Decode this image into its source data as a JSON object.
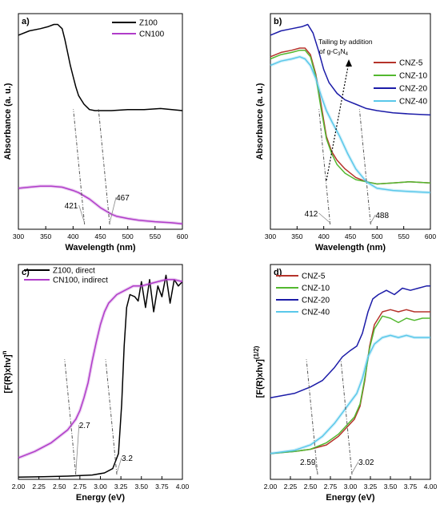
{
  "chart_data": [
    {
      "panel": "a)",
      "type": "line",
      "xlabel": "Wavelength (nm)",
      "ylabel": "Absorbance (a. u.)",
      "xlim": [
        300,
        600
      ],
      "xticks": [
        "300",
        "350",
        "400",
        "450",
        "500",
        "550",
        "600"
      ],
      "ylim": [
        0,
        1
      ],
      "legend": "top-right",
      "series": [
        {
          "name": "Z100",
          "color": "#000000",
          "x": [
            300,
            320,
            340,
            355,
            365,
            372,
            380,
            385,
            390,
            395,
            400,
            405,
            410,
            415,
            420,
            430,
            440,
            450,
            470,
            500,
            530,
            560,
            600
          ],
          "y": [
            0.9,
            0.92,
            0.93,
            0.94,
            0.95,
            0.95,
            0.93,
            0.88,
            0.82,
            0.76,
            0.71,
            0.66,
            0.62,
            0.6,
            0.58,
            0.555,
            0.55,
            0.55,
            0.55,
            0.555,
            0.555,
            0.56,
            0.55
          ]
        },
        {
          "name": "CN100",
          "color": "#b03cc9",
          "x": [
            300,
            320,
            340,
            360,
            380,
            400,
            410,
            420,
            430,
            440,
            450,
            460,
            470,
            480,
            500,
            520,
            550,
            580,
            600
          ],
          "y": [
            0.19,
            0.195,
            0.2,
            0.2,
            0.195,
            0.18,
            0.17,
            0.155,
            0.14,
            0.12,
            0.1,
            0.085,
            0.07,
            0.06,
            0.05,
            0.042,
            0.035,
            0.03,
            0.025
          ]
        }
      ],
      "annotations": [
        {
          "text": "421",
          "x": 421
        },
        {
          "text": "467",
          "x": 467
        }
      ]
    },
    {
      "panel": "b)",
      "type": "line",
      "xlabel": "Wavelength (nm)",
      "ylabel": "Absorbance (a. u.)",
      "xlim": [
        300,
        600
      ],
      "xticks": [
        "300",
        "350",
        "400",
        "450",
        "500",
        "550",
        "600"
      ],
      "ylim": [
        0,
        1
      ],
      "legend": "right",
      "annotation_text": "Tailing by addition of g-C3N4",
      "annotation_lines": [
        "Tailing by addition",
        "of g-C"
      ],
      "series": [
        {
          "name": "CNZ-5",
          "color": "#b5332b",
          "x": [
            300,
            320,
            340,
            355,
            365,
            375,
            385,
            395,
            405,
            415,
            425,
            440,
            460,
            480,
            500,
            530,
            560,
            600
          ],
          "y": [
            0.8,
            0.82,
            0.83,
            0.84,
            0.84,
            0.81,
            0.72,
            0.58,
            0.43,
            0.36,
            0.32,
            0.28,
            0.24,
            0.22,
            0.21,
            0.215,
            0.22,
            0.215
          ]
        },
        {
          "name": "CNZ-10",
          "color": "#53b82f",
          "x": [
            300,
            320,
            340,
            355,
            365,
            375,
            385,
            395,
            405,
            415,
            425,
            440,
            460,
            480,
            500,
            530,
            560,
            600
          ],
          "y": [
            0.79,
            0.81,
            0.82,
            0.83,
            0.83,
            0.8,
            0.71,
            0.56,
            0.42,
            0.35,
            0.3,
            0.26,
            0.23,
            0.22,
            0.21,
            0.215,
            0.22,
            0.215
          ]
        },
        {
          "name": "CNZ-20",
          "color": "#1c1ca8",
          "x": [
            300,
            320,
            340,
            360,
            370,
            380,
            390,
            400,
            410,
            425,
            440,
            460,
            480,
            500,
            530,
            560,
            600
          ],
          "y": [
            0.9,
            0.92,
            0.93,
            0.94,
            0.95,
            0.91,
            0.83,
            0.74,
            0.68,
            0.63,
            0.6,
            0.58,
            0.56,
            0.55,
            0.54,
            0.535,
            0.53
          ]
        },
        {
          "name": "CNZ-40",
          "color": "#5ac8ea",
          "x": [
            300,
            320,
            340,
            355,
            365,
            375,
            385,
            395,
            405,
            415,
            430,
            445,
            460,
            480,
            500,
            530,
            560,
            600
          ],
          "y": [
            0.76,
            0.78,
            0.79,
            0.8,
            0.79,
            0.76,
            0.7,
            0.62,
            0.55,
            0.5,
            0.43,
            0.35,
            0.28,
            0.22,
            0.19,
            0.18,
            0.175,
            0.17
          ]
        }
      ],
      "annotations": [
        {
          "text": "412",
          "x": 412
        },
        {
          "text": "488",
          "x": 488
        }
      ]
    },
    {
      "panel": "c)",
      "type": "line",
      "xlabel": "Energy (eV)",
      "ylabel": "[F(R)xhv]",
      "ylabel_sup": "n",
      "xlim": [
        2.0,
        4.0
      ],
      "xticks": [
        "2.00",
        "2.25",
        "2.50",
        "2.75",
        "3.00",
        "3.25",
        "3.50",
        "3.75",
        "4.00"
      ],
      "ylim": [
        0,
        1
      ],
      "legend": "top-left",
      "series": [
        {
          "name": "Z100, direct",
          "color": "#000000",
          "x": [
            2.0,
            2.3,
            2.6,
            2.9,
            3.05,
            3.15,
            3.22,
            3.26,
            3.29,
            3.32,
            3.36,
            3.42,
            3.46,
            3.5,
            3.55,
            3.6,
            3.65,
            3.7,
            3.75,
            3.8,
            3.85,
            3.9,
            3.95,
            4.0
          ],
          "y": [
            0.01,
            0.012,
            0.015,
            0.02,
            0.03,
            0.05,
            0.12,
            0.35,
            0.62,
            0.8,
            0.86,
            0.85,
            0.83,
            0.92,
            0.8,
            0.93,
            0.78,
            0.9,
            0.85,
            0.95,
            0.82,
            0.93,
            0.9,
            0.92
          ]
        },
        {
          "name": "CN100, indirect",
          "color": "#b03cc9",
          "x": [
            2.0,
            2.2,
            2.4,
            2.6,
            2.7,
            2.75,
            2.8,
            2.85,
            2.9,
            2.95,
            3.0,
            3.05,
            3.1,
            3.2,
            3.3,
            3.4,
            3.5,
            3.6,
            3.7,
            3.8,
            3.9,
            4.0
          ],
          "y": [
            0.1,
            0.13,
            0.17,
            0.23,
            0.28,
            0.32,
            0.38,
            0.45,
            0.55,
            0.64,
            0.72,
            0.78,
            0.82,
            0.86,
            0.88,
            0.9,
            0.9,
            0.91,
            0.92,
            0.93,
            0.93,
            0.92
          ]
        }
      ],
      "annotations": [
        {
          "text": "2.7",
          "x": 2.7
        },
        {
          "text": "3.2",
          "x": 3.2
        }
      ]
    },
    {
      "panel": "d)",
      "type": "line",
      "xlabel": "Energy (eV)",
      "ylabel": "[F(R)xhv]",
      "ylabel_sup": "(1/2)",
      "xlim": [
        2.0,
        4.0
      ],
      "xticks": [
        "2.00",
        "2.25",
        "2.50",
        "2.75",
        "3.00",
        "3.25",
        "3.50",
        "3.75",
        "4.00"
      ],
      "ylim": [
        0,
        1
      ],
      "legend": "top-left",
      "series": [
        {
          "name": "CNZ-5",
          "color": "#b5332b",
          "x": [
            2.0,
            2.3,
            2.5,
            2.7,
            2.85,
            2.95,
            3.05,
            3.12,
            3.18,
            3.24,
            3.3,
            3.4,
            3.5,
            3.6,
            3.7,
            3.8,
            3.9,
            4.0
          ],
          "y": [
            0.12,
            0.13,
            0.14,
            0.16,
            0.2,
            0.24,
            0.28,
            0.34,
            0.46,
            0.62,
            0.72,
            0.78,
            0.79,
            0.78,
            0.79,
            0.78,
            0.78,
            0.78
          ]
        },
        {
          "name": "CNZ-10",
          "color": "#53b82f",
          "x": [
            2.0,
            2.3,
            2.5,
            2.7,
            2.85,
            2.95,
            3.05,
            3.12,
            3.18,
            3.24,
            3.3,
            3.4,
            3.5,
            3.6,
            3.7,
            3.8,
            3.9,
            4.0
          ],
          "y": [
            0.12,
            0.13,
            0.14,
            0.17,
            0.21,
            0.25,
            0.29,
            0.35,
            0.47,
            0.61,
            0.7,
            0.76,
            0.75,
            0.73,
            0.75,
            0.74,
            0.75,
            0.75
          ]
        },
        {
          "name": "CNZ-20",
          "color": "#1c1ca8",
          "x": [
            2.0,
            2.3,
            2.5,
            2.65,
            2.8,
            2.9,
            3.0,
            3.08,
            3.15,
            3.22,
            3.28,
            3.35,
            3.45,
            3.55,
            3.65,
            3.75,
            3.85,
            3.95,
            4.0
          ],
          "y": [
            0.38,
            0.4,
            0.43,
            0.46,
            0.52,
            0.57,
            0.6,
            0.62,
            0.68,
            0.78,
            0.84,
            0.86,
            0.88,
            0.86,
            0.89,
            0.88,
            0.89,
            0.9,
            0.9
          ]
        },
        {
          "name": "CNZ-40",
          "color": "#5ac8ea",
          "x": [
            2.0,
            2.3,
            2.5,
            2.65,
            2.8,
            2.9,
            3.0,
            3.08,
            3.15,
            3.22,
            3.3,
            3.4,
            3.5,
            3.6,
            3.7,
            3.8,
            3.9,
            4.0
          ],
          "y": [
            0.12,
            0.135,
            0.16,
            0.2,
            0.26,
            0.31,
            0.36,
            0.4,
            0.47,
            0.57,
            0.63,
            0.66,
            0.67,
            0.66,
            0.67,
            0.66,
            0.66,
            0.66
          ]
        }
      ],
      "annotations": [
        {
          "text": "2.59",
          "x": 2.59
        },
        {
          "text": "3.02",
          "x": 3.02
        }
      ]
    }
  ]
}
